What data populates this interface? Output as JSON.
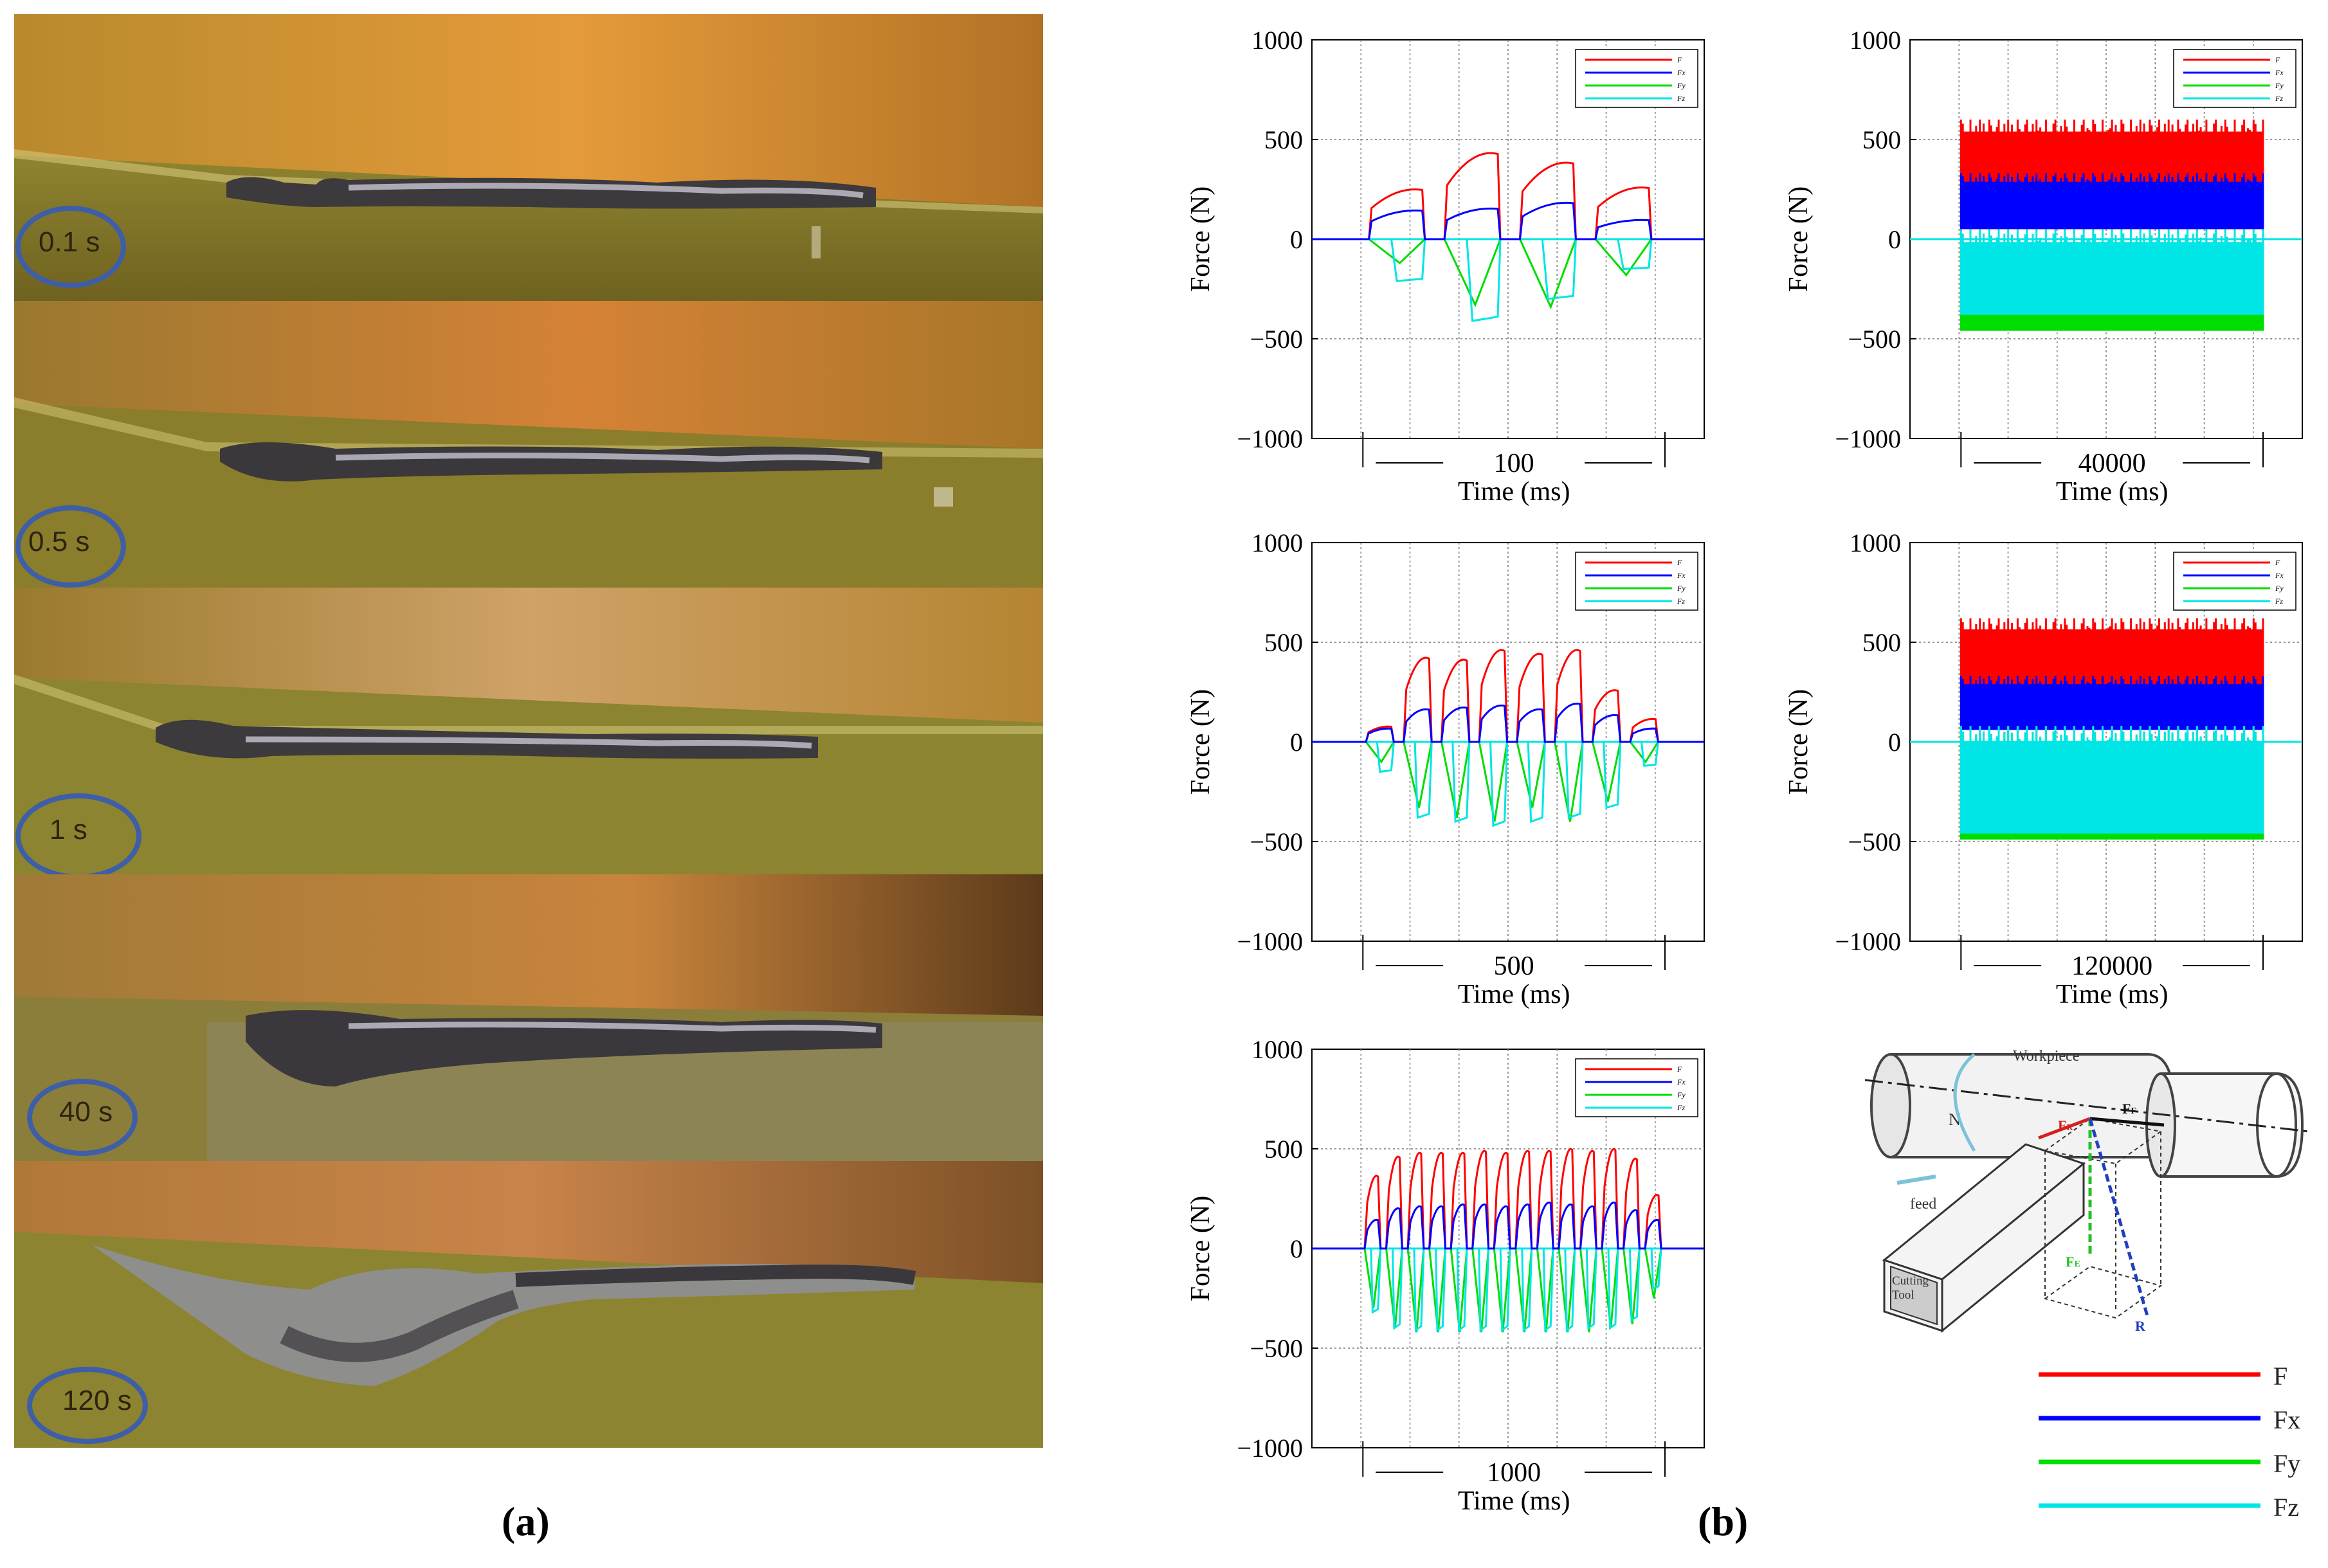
{
  "panel_a": {
    "caption": "(a)",
    "photos": [
      {
        "time": "0.1 s"
      },
      {
        "time": "0.5 s"
      },
      {
        "time": "1 s"
      },
      {
        "time": "40 s"
      },
      {
        "time": "120 s"
      }
    ]
  },
  "panel_b": {
    "caption": "(b)"
  },
  "colors": {
    "F": "#ff0000",
    "Fx": "#0000ff",
    "Fy": "#00dd00",
    "Fz": "#00e5e5",
    "ring": "#3e5ea8"
  },
  "chart_data": [
    {
      "type": "line",
      "id": "chart-100ms",
      "ylabel": "Force (N)",
      "xlabel": "Time (ms)",
      "duration_label": "100",
      "ylim": [
        -1000,
        1000
      ],
      "yticks": [
        "1000",
        "500",
        "0",
        "−500",
        "−1000"
      ],
      "grid": true,
      "legend_entries": [
        "F",
        "Fx",
        "Fy",
        "Fz"
      ],
      "legend_position": "top-right",
      "cycles": 4,
      "series": [
        {
          "name": "F",
          "peaks": [
            260,
            450,
            400,
            270
          ]
        },
        {
          "name": "Fx",
          "peaks": [
            150,
            160,
            190,
            100
          ]
        },
        {
          "name": "Fy",
          "peaks": [
            -120,
            -330,
            -340,
            -180
          ]
        },
        {
          "name": "Fz",
          "peaks": [
            -210,
            -410,
            -300,
            -150
          ]
        }
      ]
    },
    {
      "type": "line",
      "id": "chart-40000ms",
      "ylabel": "Force (N)",
      "xlabel": "Time (ms)",
      "duration_label": "40000",
      "ylim": [
        -1000,
        1000
      ],
      "yticks": [
        "1000",
        "500",
        "0",
        "−500",
        "−1000"
      ],
      "grid": true,
      "legend_entries": [
        "F",
        "Fx",
        "Fy",
        "Fz"
      ],
      "legend_position": "top-right",
      "dense": true,
      "bands": [
        {
          "name": "F",
          "range": [
            200,
            600
          ]
        },
        {
          "name": "Fx",
          "range": [
            50,
            330
          ]
        },
        {
          "name": "Fy",
          "range": [
            -460,
            0
          ]
        },
        {
          "name": "Fz",
          "range": [
            -380,
            50
          ]
        }
      ]
    },
    {
      "type": "line",
      "id": "chart-500ms",
      "ylabel": "Force (N)",
      "xlabel": "Time (ms)",
      "duration_label": "500",
      "ylim": [
        -1000,
        1000
      ],
      "yticks": [
        "1000",
        "500",
        "0",
        "−500",
        "−1000"
      ],
      "grid": true,
      "legend_entries": [
        "F",
        "Fx",
        "Fy",
        "Fz"
      ],
      "legend_position": "top-right",
      "cycles": 8,
      "series": [
        {
          "name": "F",
          "peaks": [
            80,
            440,
            430,
            480,
            460,
            480,
            270,
            120
          ]
        },
        {
          "name": "Fx",
          "peaks": [
            70,
            170,
            180,
            190,
            170,
            200,
            140,
            70
          ]
        },
        {
          "name": "Fy",
          "peaks": [
            -100,
            -330,
            -380,
            -400,
            -330,
            -400,
            -300,
            -100
          ]
        },
        {
          "name": "Fz",
          "peaks": [
            -150,
            -380,
            -400,
            -420,
            -400,
            -380,
            -330,
            -120
          ]
        }
      ]
    },
    {
      "type": "line",
      "id": "chart-120000ms",
      "ylabel": "Force (N)",
      "xlabel": "Time (ms)",
      "duration_label": "120000",
      "ylim": [
        -1000,
        1000
      ],
      "yticks": [
        "1000",
        "500",
        "0",
        "−500",
        "−1000"
      ],
      "grid": true,
      "legend_entries": [
        "F",
        "Fx",
        "Fy",
        "Fz"
      ],
      "legend_position": "top-right",
      "dense": true,
      "bands": [
        {
          "name": "F",
          "range": [
            250,
            620
          ]
        },
        {
          "name": "Fx",
          "range": [
            60,
            330
          ]
        },
        {
          "name": "Fy",
          "range": [
            -490,
            80
          ]
        },
        {
          "name": "Fz",
          "range": [
            -460,
            80
          ]
        }
      ]
    },
    {
      "type": "line",
      "id": "chart-1000ms",
      "ylabel": "Force (N)",
      "xlabel": "Time (ms)",
      "duration_label": "1000",
      "ylim": [
        -1000,
        1000
      ],
      "yticks": [
        "1000",
        "500",
        "0",
        "−500",
        "−1000"
      ],
      "grid": true,
      "legend_entries": [
        "F",
        "Fx",
        "Fy",
        "Fz"
      ],
      "legend_position": "top-right",
      "cycles": 14,
      "series": [
        {
          "name": "F",
          "peaks": [
            380,
            480,
            500,
            500,
            500,
            510,
            500,
            510,
            510,
            520,
            510,
            520,
            470,
            280
          ]
        },
        {
          "name": "Fx",
          "peaks": [
            150,
            210,
            220,
            220,
            230,
            230,
            220,
            230,
            240,
            230,
            220,
            240,
            200,
            150
          ]
        },
        {
          "name": "Fy",
          "peaks": [
            -300,
            -400,
            -420,
            -420,
            -420,
            -420,
            -420,
            -420,
            -420,
            -420,
            -420,
            -400,
            -380,
            -250
          ]
        },
        {
          "name": "Fz",
          "peaks": [
            -320,
            -400,
            -410,
            -410,
            -410,
            -410,
            -410,
            -410,
            -410,
            -410,
            -400,
            -400,
            -360,
            -200
          ]
        }
      ]
    }
  ],
  "diagram": {
    "workpiece": "Workpiece",
    "N": "N",
    "feed": "feed",
    "cutting_tool": "Cutting Tool",
    "cutting_tool_line1": "Cutting",
    "cutting_tool_line2": "Tool",
    "FR_main": "F",
    "FR_sub": "R",
    "FF_main": "F",
    "FF_sub": "F",
    "FE_main": "F",
    "FE_sub": "E",
    "R": "R"
  },
  "main_legend": [
    {
      "label": "F",
      "color": "#ff0000"
    },
    {
      "label": "Fx",
      "color": "#0000ff"
    },
    {
      "label": "Fy",
      "color": "#00dd00"
    },
    {
      "label": "Fz",
      "color": "#00e5e5"
    }
  ]
}
